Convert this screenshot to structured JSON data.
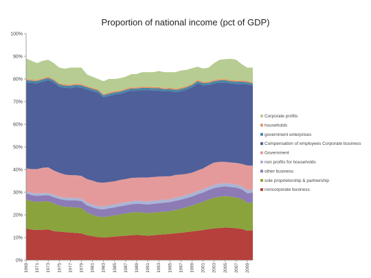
{
  "chart_data": {
    "type": "area",
    "stacked": true,
    "title": "Proportion of national income (pct of GDP)",
    "xlabel": "",
    "ylabel": "",
    "ylim": [
      0,
      100
    ],
    "y_ticks": [
      "0%",
      "10%",
      "20%",
      "30%",
      "40%",
      "50%",
      "60%",
      "70%",
      "80%",
      "90%",
      "100%"
    ],
    "x_tick_labels": [
      "1969",
      "1971",
      "1973",
      "1975",
      "1977",
      "1979",
      "1981",
      "1983",
      "1985",
      "1987",
      "1989",
      "1991",
      "1993",
      "1995",
      "1997",
      "1999",
      "2001",
      "2003",
      "2005",
      "2007",
      "2009"
    ],
    "grid": false,
    "legend_position": "right",
    "x": [
      1969,
      1970,
      1971,
      1972,
      1973,
      1974,
      1975,
      1976,
      1977,
      1978,
      1979,
      1980,
      1981,
      1982,
      1983,
      1984,
      1985,
      1986,
      1987,
      1988,
      1989,
      1990,
      1991,
      1992,
      1993,
      1994,
      1995,
      1996,
      1997,
      1998,
      1999,
      2000,
      2001,
      2002,
      2003,
      2004,
      2005,
      2006,
      2007,
      2008,
      2009,
      2010
    ],
    "series": [
      {
        "name": "noncorporate business",
        "color": "#b5403c",
        "values": [
          14.0,
          13.5,
          13.3,
          13.4,
          13.6,
          12.8,
          12.6,
          12.4,
          12.2,
          12.0,
          11.8,
          11.0,
          10.6,
          10.2,
          10.0,
          10.2,
          10.4,
          10.6,
          10.8,
          11.0,
          11.2,
          11.0,
          10.8,
          11.0,
          11.2,
          11.4,
          11.6,
          11.9,
          12.1,
          12.4,
          12.7,
          13.0,
          13.3,
          13.7,
          14.0,
          14.2,
          14.4,
          14.3,
          14.1,
          13.8,
          13.0,
          13.2
        ]
      },
      {
        "name": "sole proprietorship & partnership",
        "color": "#8aa33d",
        "values": [
          12.8,
          12.5,
          12.4,
          12.5,
          12.4,
          12.2,
          11.5,
          11.2,
          11.2,
          11.3,
          11.2,
          10.0,
          9.4,
          9.0,
          9.0,
          9.2,
          9.4,
          9.6,
          9.8,
          10.0,
          10.0,
          10.0,
          10.0,
          10.0,
          10.0,
          10.0,
          10.0,
          10.3,
          10.6,
          11.0,
          11.4,
          12.0,
          12.5,
          13.0,
          13.6,
          13.8,
          13.9,
          13.7,
          13.6,
          13.2,
          12.2,
          12.4
        ]
      },
      {
        "name": "other business",
        "color": "#8c7bb5",
        "values": [
          2.7,
          2.7,
          2.7,
          2.7,
          2.7,
          2.8,
          2.9,
          2.9,
          3.0,
          3.1,
          3.1,
          3.2,
          3.3,
          3.4,
          3.4,
          3.5,
          3.5,
          3.6,
          3.6,
          3.7,
          3.7,
          3.8,
          3.8,
          3.9,
          3.9,
          4.0,
          4.0,
          4.0,
          4.0,
          4.0,
          4.0,
          4.1,
          4.1,
          4.2,
          4.2,
          4.3,
          4.3,
          4.3,
          4.3,
          4.3,
          4.3,
          4.3
        ]
      },
      {
        "name": "non profits for households",
        "color": "#a9b4d6",
        "values": [
          1.0,
          1.0,
          1.0,
          1.0,
          1.0,
          1.0,
          1.1,
          1.1,
          1.1,
          1.1,
          1.1,
          1.2,
          1.2,
          1.2,
          1.3,
          1.3,
          1.3,
          1.3,
          1.3,
          1.3,
          1.3,
          1.3,
          1.3,
          1.3,
          1.3,
          1.3,
          1.3,
          1.4,
          1.4,
          1.4,
          1.4,
          1.4,
          1.4,
          1.4,
          1.4,
          1.4,
          1.4,
          1.4,
          1.4,
          1.4,
          1.4,
          1.4
        ]
      },
      {
        "name": "Government",
        "color": "#e49a9a",
        "values": [
          10.0,
          10.5,
          10.8,
          11.2,
          11.3,
          10.8,
          10.5,
          10.2,
          10.0,
          10.0,
          10.0,
          10.4,
          10.6,
          10.5,
          10.5,
          10.3,
          10.2,
          10.3,
          10.3,
          10.3,
          10.2,
          10.4,
          10.6,
          10.5,
          10.5,
          10.3,
          10.1,
          10.0,
          9.7,
          9.3,
          9.1,
          9.1,
          9.2,
          9.6,
          9.9,
          9.7,
          9.4,
          9.4,
          9.5,
          9.8,
          10.9,
          10.4
        ]
      },
      {
        "name": "Compensation of employees Corporate business",
        "color": "#4e5f99",
        "values": [
          38.0,
          38.0,
          37.9,
          38.0,
          38.5,
          38.8,
          38.0,
          38.3,
          38.5,
          38.9,
          39.0,
          39.6,
          39.5,
          39.6,
          37.6,
          38.0,
          38.3,
          38.0,
          38.4,
          38.5,
          38.4,
          38.6,
          38.6,
          38.2,
          38.0,
          37.5,
          37.6,
          36.6,
          36.8,
          37.2,
          37.7,
          38.4,
          36.7,
          35.4,
          34.9,
          35.0,
          35.0,
          34.9,
          34.9,
          35.3,
          35.8,
          35.3
        ]
      },
      {
        "name": "government enterprises",
        "color": "#4b86a6",
        "values": [
          1.0,
          1.0,
          1.0,
          1.0,
          1.0,
          1.0,
          1.0,
          1.0,
          1.0,
          1.0,
          1.0,
          1.0,
          1.0,
          1.0,
          1.0,
          1.0,
          1.0,
          1.0,
          1.0,
          1.0,
          1.0,
          1.0,
          1.0,
          1.0,
          1.0,
          1.0,
          1.0,
          1.0,
          1.0,
          1.0,
          1.0,
          1.0,
          1.0,
          1.0,
          1.0,
          1.0,
          1.0,
          1.0,
          1.0,
          1.0,
          1.0,
          1.0
        ]
      },
      {
        "name": "households",
        "color": "#e8935a",
        "values": [
          0.5,
          0.5,
          0.5,
          0.5,
          0.5,
          0.5,
          0.5,
          0.5,
          0.5,
          0.5,
          0.5,
          0.5,
          0.5,
          0.5,
          0.5,
          0.5,
          0.5,
          0.5,
          0.5,
          0.5,
          0.5,
          0.5,
          0.5,
          0.5,
          0.5,
          0.5,
          0.5,
          0.5,
          0.5,
          0.5,
          0.5,
          0.5,
          0.5,
          0.5,
          0.5,
          0.5,
          0.5,
          0.5,
          0.5,
          0.5,
          0.5,
          0.5
        ]
      },
      {
        "name": "Corporate profits",
        "color": "#b7cc92",
        "values": [
          9.0,
          8.3,
          7.4,
          7.7,
          7.5,
          7.1,
          6.9,
          6.9,
          7.5,
          7.1,
          7.3,
          5.1,
          4.9,
          4.6,
          5.7,
          6.0,
          5.4,
          5.4,
          5.3,
          5.8,
          5.9,
          6.4,
          6.4,
          6.6,
          7.1,
          7.0,
          6.9,
          7.3,
          7.6,
          7.2,
          6.9,
          5.9,
          5.9,
          6.2,
          7.5,
          8.6,
          8.8,
          9.4,
          9.2,
          7.2,
          5.9,
          6.5
        ]
      }
    ]
  }
}
